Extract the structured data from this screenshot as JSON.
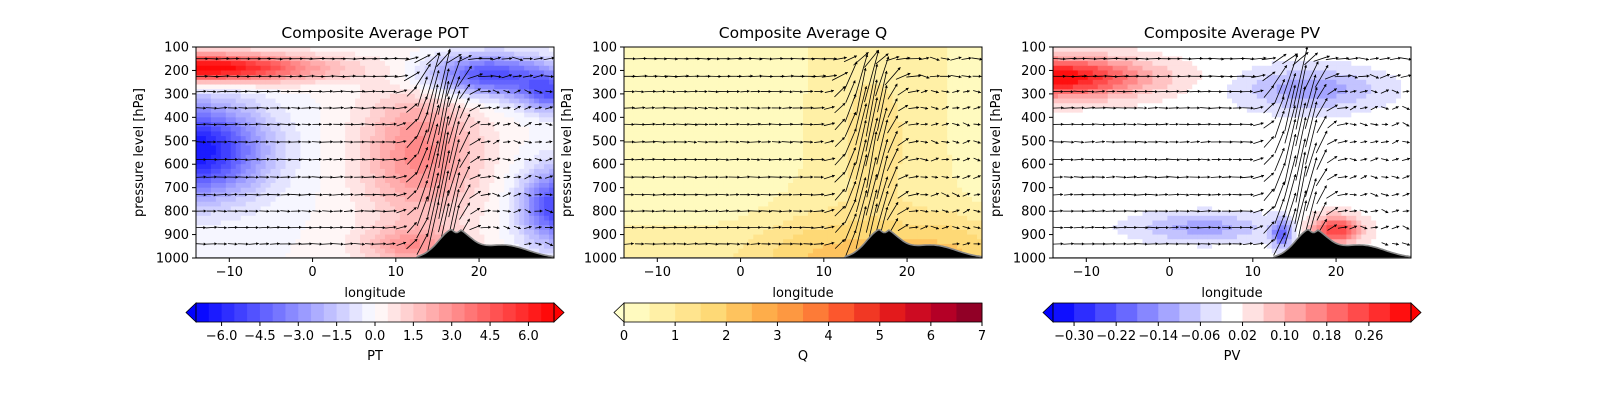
{
  "chart_data": [
    {
      "type": "heatmap",
      "title": "Composite Average POT",
      "xlabel": "longitude",
      "ylabel": "pressure level [hPa]",
      "xlim": [
        -14,
        29
      ],
      "ylim": [
        1000,
        100
      ],
      "x_ticks": [
        -10,
        0,
        10,
        20
      ],
      "y_ticks": [
        100,
        200,
        300,
        400,
        500,
        600,
        700,
        800,
        900,
        1000
      ],
      "colormap": "bwr",
      "colorbar": {
        "label": "PT",
        "vmin": -7,
        "vmax": 7,
        "levels": 28,
        "extend": "both",
        "ticks": [
          "−6.0",
          "−4.5",
          "−3.0",
          "−1.5",
          "0.0",
          "1.5",
          "3.0",
          "4.5",
          "6.0"
        ],
        "tick_values": [
          -6,
          -4.5,
          -3,
          -1.5,
          0,
          1.5,
          3,
          4.5,
          6
        ]
      },
      "overlays": [
        "wind vectors",
        "terrain"
      ]
    },
    {
      "type": "heatmap",
      "title": "Composite Average Q",
      "xlabel": "longitude",
      "ylabel": "pressure level [hPa]",
      "xlim": [
        -14,
        29
      ],
      "ylim": [
        1000,
        100
      ],
      "x_ticks": [
        -10,
        0,
        10,
        20
      ],
      "y_ticks": [
        100,
        200,
        300,
        400,
        500,
        600,
        700,
        800,
        900,
        1000
      ],
      "colormap": "YlOrRd",
      "colorbar": {
        "label": "Q",
        "vmin": 0,
        "vmax": 7,
        "levels": 14,
        "extend": "min",
        "ticks": [
          "0",
          "1",
          "2",
          "3",
          "4",
          "5",
          "6",
          "7"
        ],
        "tick_values": [
          0,
          1,
          2,
          3,
          4,
          5,
          6,
          7
        ]
      },
      "overlays": [
        "wind vectors",
        "terrain"
      ]
    },
    {
      "type": "heatmap",
      "title": "Composite Average PV",
      "xlabel": "longitude",
      "ylabel": "pressure level [hPa]",
      "xlim": [
        -14,
        29
      ],
      "ylim": [
        1000,
        100
      ],
      "x_ticks": [
        -10,
        0,
        10,
        20
      ],
      "y_ticks": [
        100,
        200,
        300,
        400,
        500,
        600,
        700,
        800,
        900,
        1000
      ],
      "colormap": "bwr",
      "colorbar": {
        "label": "PV",
        "vmin": -0.34,
        "vmax": 0.34,
        "levels": 17,
        "extend": "both",
        "ticks": [
          "−0.30",
          "−0.22",
          "−0.14",
          "−0.06",
          "0.02",
          "0.10",
          "0.18",
          "0.26"
        ],
        "tick_values": [
          -0.3,
          -0.22,
          -0.14,
          -0.06,
          0.02,
          0.1,
          0.18,
          0.26
        ]
      },
      "overlays": [
        "wind vectors",
        "terrain"
      ]
    }
  ]
}
